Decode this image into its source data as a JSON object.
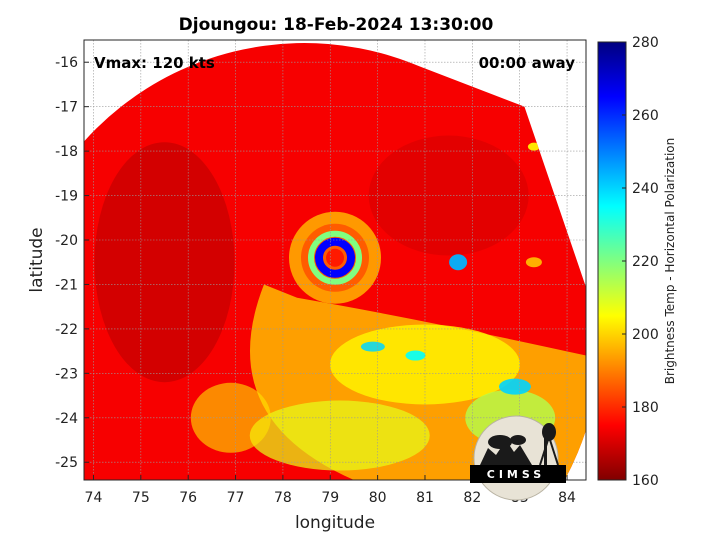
{
  "chart_data": {
    "type": "heatmap",
    "title": "Djoungou: 18-Feb-2024 13:30:00",
    "xlabel": "longitude",
    "ylabel": "latitude",
    "xlim": [
      73.8,
      84.4
    ],
    "ylim": [
      -25.4,
      -15.5
    ],
    "xticks": [
      74,
      75,
      76,
      77,
      78,
      79,
      80,
      81,
      82,
      83,
      84
    ],
    "yticks": [
      -16,
      -17,
      -18,
      -19,
      -20,
      -21,
      -22,
      -23,
      -24,
      -25
    ],
    "grid": true,
    "storm_center": {
      "lon": 79.1,
      "lat": -20.4
    },
    "eye_ring_temp_K": 175,
    "annotations": {
      "vmax": "Vmax: 120 kts",
      "time_offset": "00:00 away"
    },
    "colorbar": {
      "label": "Brightness Temp - Horizontal Polarization",
      "range": [
        160,
        280
      ],
      "ticks": [
        280,
        260,
        240,
        220,
        200,
        180,
        160
      ],
      "colormap": "jet"
    },
    "logo_text": "CIMSS"
  }
}
